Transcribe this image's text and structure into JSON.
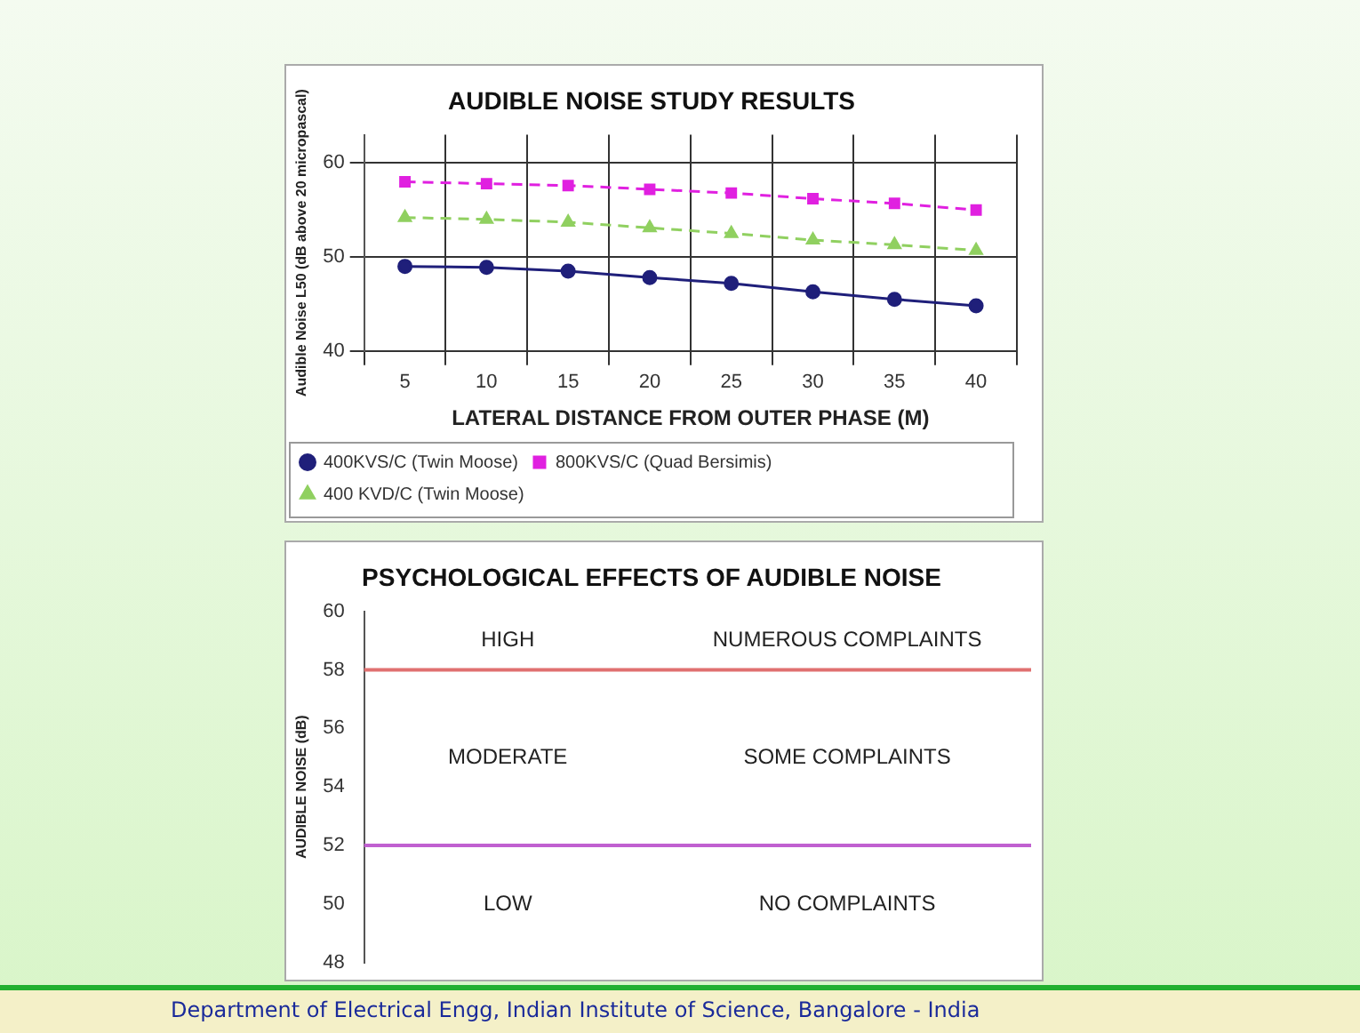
{
  "chart_data": [
    {
      "type": "line",
      "title": "AUDIBLE NOISE STUDY RESULTS",
      "xlabel": "LATERAL DISTANCE FROM OUTER PHASE (M)",
      "ylabel": "Audible Noise L50 (dB above 20 micropascal)",
      "categories": [
        "5",
        "10",
        "15",
        "20",
        "25",
        "30",
        "35",
        "40"
      ],
      "series": [
        {
          "name": "400KVS/C (Twin Moose)",
          "color": "#1f1f7a",
          "values": [
            49,
            48.9,
            48.5,
            47.8,
            47.2,
            46.3,
            45.5,
            44.8
          ],
          "marker": "circle",
          "line_style": "solid"
        },
        {
          "name": "800KVS/C (Quad Bersimis)",
          "color": "#e020e0",
          "values": [
            58,
            57.8,
            57.6,
            57.2,
            56.8,
            56.2,
            55.7,
            55
          ],
          "marker": "square",
          "line_style": "dashed"
        },
        {
          "name": "400 KVD/C (Twin Moose)",
          "color": "#90d060",
          "values": [
            54.2,
            54,
            53.7,
            53.1,
            52.5,
            51.8,
            51.3,
            50.7
          ],
          "marker": "triangle",
          "line_style": "dashed"
        }
      ],
      "ylim": [
        40,
        63
      ],
      "yticks": [
        40,
        50,
        60
      ],
      "grid": true,
      "legend": "bottom"
    },
    {
      "type": "line",
      "categories": [
        null,
        null
      ],
      "title": "PSYCHOLOGICAL EFFECTS OF AUDIBLE NOISE",
      "ylabel": "AUDIBLE NOISE (dB)",
      "ylim": [
        48,
        60
      ],
      "yticks": [
        48,
        50,
        52,
        54,
        56,
        58,
        60
      ],
      "grid": false,
      "tick_labels": "y",
      "ref_lines": [
        {
          "axis": "y",
          "value": 58,
          "color": "#e07070"
        },
        {
          "axis": "y",
          "value": 52,
          "color": "#c060d0"
        }
      ],
      "annotations": [
        "HIGH",
        "NUMEROUS COMPLAINTS",
        "MODERATE",
        "SOME COMPLAINTS",
        "LOW",
        "NO COMPLAINTS",
        "Department of Electrical Engg, Indian Institute of Science, Bangalore - India"
      ]
    }
  ]
}
